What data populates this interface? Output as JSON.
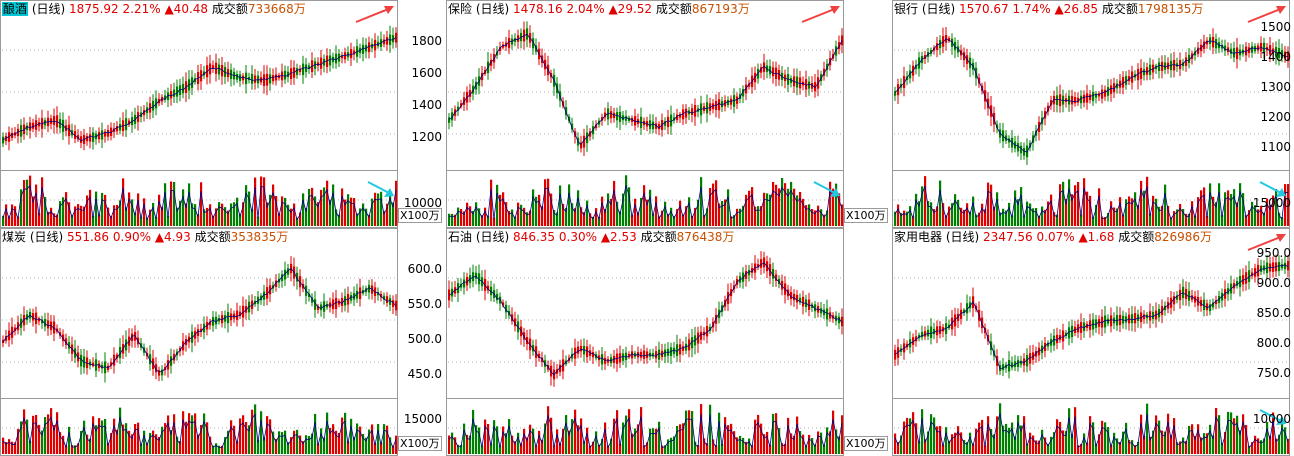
{
  "volume_unit": "X100万",
  "panels": [
    {
      "id": "p0",
      "name": "酿酒",
      "period": "(日线)",
      "price": "1875.92",
      "pct": "2.21%",
      "change": "▲40.48",
      "vol_label": "成交额",
      "vol": "733668万",
      "selected": true,
      "price_ticks": [],
      "vol_ticks": [],
      "arrow_top": "up",
      "arrow_bottom": "down-right"
    },
    {
      "id": "p1",
      "name": "保险",
      "period": "(日线)",
      "price": "1478.16",
      "pct": "2.04%",
      "change": "▲29.52",
      "vol_label": "成交额",
      "vol": "867193万",
      "selected": false,
      "price_ticks": [
        "1800",
        "1600",
        "1400",
        "1200"
      ],
      "vol_ticks": [
        "10000"
      ],
      "arrow_top": "up",
      "arrow_bottom": "down-right"
    },
    {
      "id": "p2",
      "name": "银行",
      "period": "(日线)",
      "price": "1570.67",
      "pct": "1.74%",
      "change": "▲26.85",
      "vol_label": "成交额",
      "vol": "1798135万",
      "selected": false,
      "price_ticks": [
        "1500",
        "1400",
        "1300",
        "1200",
        "1100"
      ],
      "vol_ticks": [
        "15000"
      ],
      "arrow_top": "up",
      "arrow_bottom": "down-right"
    },
    {
      "id": "p3",
      "name": "煤炭",
      "period": "(日线)",
      "price": "551.86",
      "pct": "0.90%",
      "change": "▲4.93",
      "vol_label": "成交额",
      "vol": "353835万",
      "selected": false,
      "price_ticks": [],
      "vol_ticks": [],
      "arrow_top": "",
      "arrow_bottom": ""
    },
    {
      "id": "p4",
      "name": "石油",
      "period": "(日线)",
      "price": "846.35",
      "pct": "0.30%",
      "change": "▲2.53",
      "vol_label": "成交额",
      "vol": "876438万",
      "selected": false,
      "price_ticks": [
        "600.0",
        "550.0",
        "500.0",
        "450.0"
      ],
      "vol_ticks": [
        "15000"
      ],
      "arrow_top": "",
      "arrow_bottom": ""
    },
    {
      "id": "p5",
      "name": "家用电器",
      "period": "(日线)",
      "price": "2347.56",
      "pct": "0.07%",
      "change": "▲1.68",
      "vol_label": "成交额",
      "vol": "826986万",
      "selected": false,
      "price_ticks": [
        "950.0",
        "900.0",
        "850.0",
        "800.0",
        "750.0"
      ],
      "vol_ticks": [
        "10000"
      ],
      "arrow_top": "up",
      "arrow_bottom": "down-right"
    }
  ],
  "colors": {
    "up": "#e00000",
    "down": "#008000",
    "ma1": "#000080",
    "ma2": "#c80000",
    "arrow_red": "#f04040",
    "arrow_cyan": "#20c8e0",
    "grid": "#b0b0b0"
  }
}
